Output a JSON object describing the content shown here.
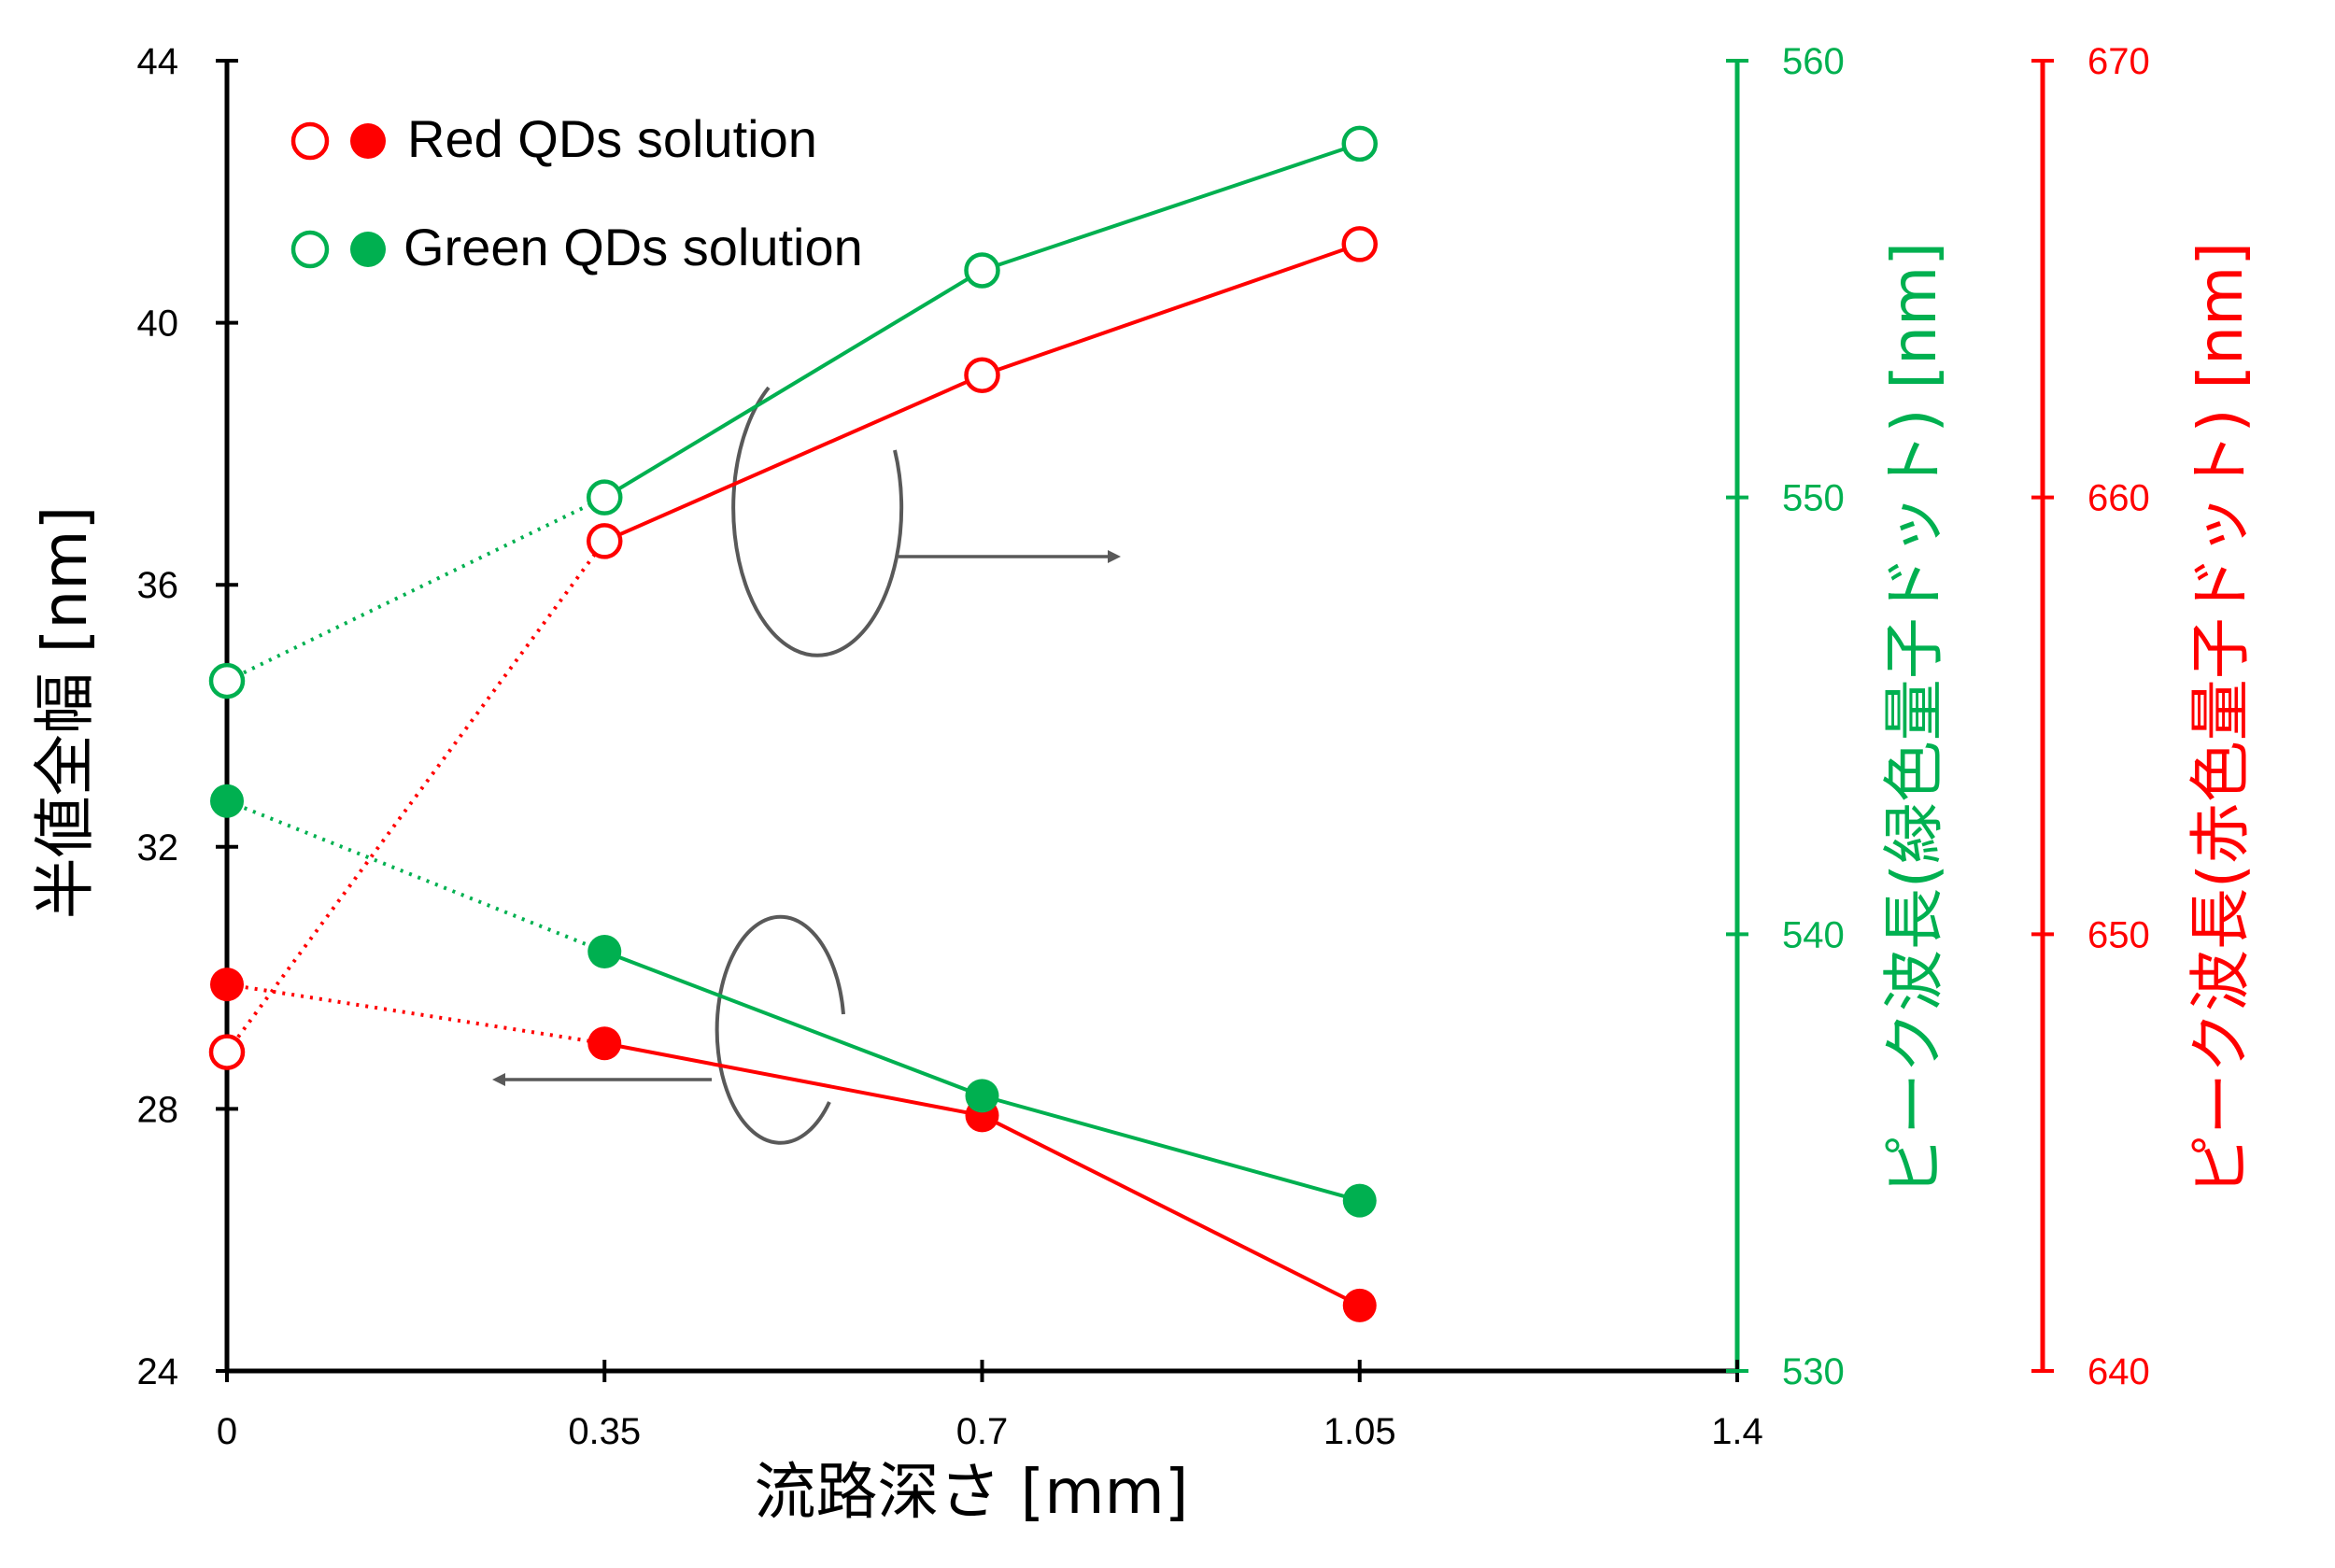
{
  "chart_data": {
    "type": "line",
    "title": "",
    "xlabel": "流路深さ [mm]",
    "ylabel_left": "半値全幅 [nm]",
    "ylabel_right_green": "ピーク波長(緑色量子ドット) [nm]",
    "ylabel_right_red": "ピーク波長(赤色量子ドット) [nm]",
    "xlim": [
      0,
      1.4
    ],
    "xticks": [
      "0",
      "0.35",
      "0.7",
      "1.05",
      "1.4"
    ],
    "xtick_values": [
      0,
      0.35,
      0.7,
      1.05,
      1.4
    ],
    "ylim_left": [
      24,
      44
    ],
    "yticks_left": [
      "24",
      "28",
      "32",
      "36",
      "40",
      "44"
    ],
    "ylim_right_green": [
      530,
      560
    ],
    "yticks_right_green": [
      "530",
      "540",
      "550",
      "560"
    ],
    "ylim_right_red": [
      640,
      670
    ],
    "yticks_right_red": [
      "640",
      "650",
      "660",
      "670"
    ],
    "legend": [
      {
        "text": "Red QDs solution",
        "color": "#ff0000"
      },
      {
        "text": "Green QDs solution",
        "color": "#00b050"
      }
    ],
    "colors": {
      "red": "#ff0000",
      "green": "#00b050",
      "annotation": "#595959"
    },
    "series": [
      {
        "color": "#ff0000",
        "marker": "open",
        "axis": "right_red",
        "x": [
          0,
          0.35,
          0.7,
          1.05
        ],
        "y": [
          647.3,
          659.0,
          662.8,
          665.8
        ],
        "dotted_until_index": 1
      },
      {
        "color": "#00b050",
        "marker": "open",
        "axis": "right_green",
        "x": [
          0,
          0.35,
          0.7,
          1.05
        ],
        "y": [
          545.8,
          550.0,
          555.2,
          558.1
        ],
        "dotted_until_index": 1
      },
      {
        "color": "#ff0000",
        "marker": "filled",
        "axis": "left",
        "x": [
          0,
          0.35,
          0.7,
          1.05
        ],
        "y": [
          29.9,
          29.0,
          27.9,
          25.0
        ],
        "dotted_until_index": 1
      },
      {
        "color": "#00b050",
        "marker": "filled",
        "axis": "left",
        "x": [
          0,
          0.35,
          0.7,
          1.05
        ],
        "y": [
          32.7,
          30.4,
          28.2,
          26.6
        ],
        "dotted_until_index": 1
      }
    ],
    "annotations": [
      {
        "target": "open-markers",
        "arrow_direction": "right"
      },
      {
        "target": "filled-markers",
        "arrow_direction": "left"
      }
    ],
    "grid": false,
    "legend_position": "top-left"
  }
}
